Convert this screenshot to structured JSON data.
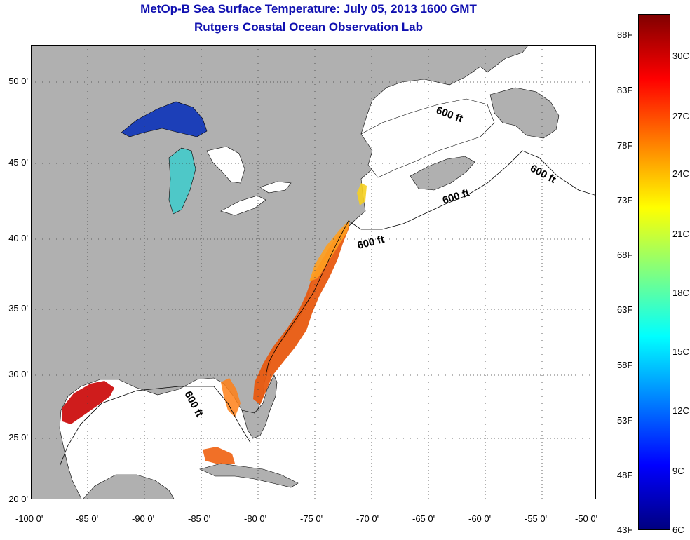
{
  "header": {
    "title_line1": "MetOp-B Sea Surface Temperature:  July 05, 2013 1600 GMT",
    "title_line2": "Rutgers Coastal Ocean Observation Lab"
  },
  "map": {
    "lon_labels": [
      "-100 0'",
      "-95 0'",
      "-90 0'",
      "-85 0'",
      "-80 0'",
      "-75 0'",
      "-70 0'",
      "-65 0'",
      "-60 0'",
      "-55 0'",
      "-50 0'"
    ],
    "lat_labels": [
      "50 0'",
      "45 0'",
      "40 0'",
      "35 0'",
      "30 0'",
      "25 0'",
      "20 0'"
    ],
    "contour_labels": [
      "600 ft",
      "600 ft",
      "600 ft",
      "600 ft",
      "600 ft"
    ],
    "colors": {
      "land": "#b0b0b0",
      "ocean_no_data": "#ffffff",
      "grid": "#404040"
    }
  },
  "colorbar": {
    "fahrenheit_labels": [
      "88F",
      "83F",
      "78F",
      "73F",
      "68F",
      "63F",
      "58F",
      "53F",
      "48F",
      "43F"
    ],
    "celsius_labels": [
      "30C",
      "27C",
      "24C",
      "21C",
      "18C",
      "15C",
      "12C",
      "9C",
      "6C"
    ],
    "gradient": [
      "#800000",
      "#ff0000",
      "#ff8000",
      "#ffff00",
      "#80ff80",
      "#00ffff",
      "#0080ff",
      "#0000ff",
      "#000080"
    ]
  }
}
